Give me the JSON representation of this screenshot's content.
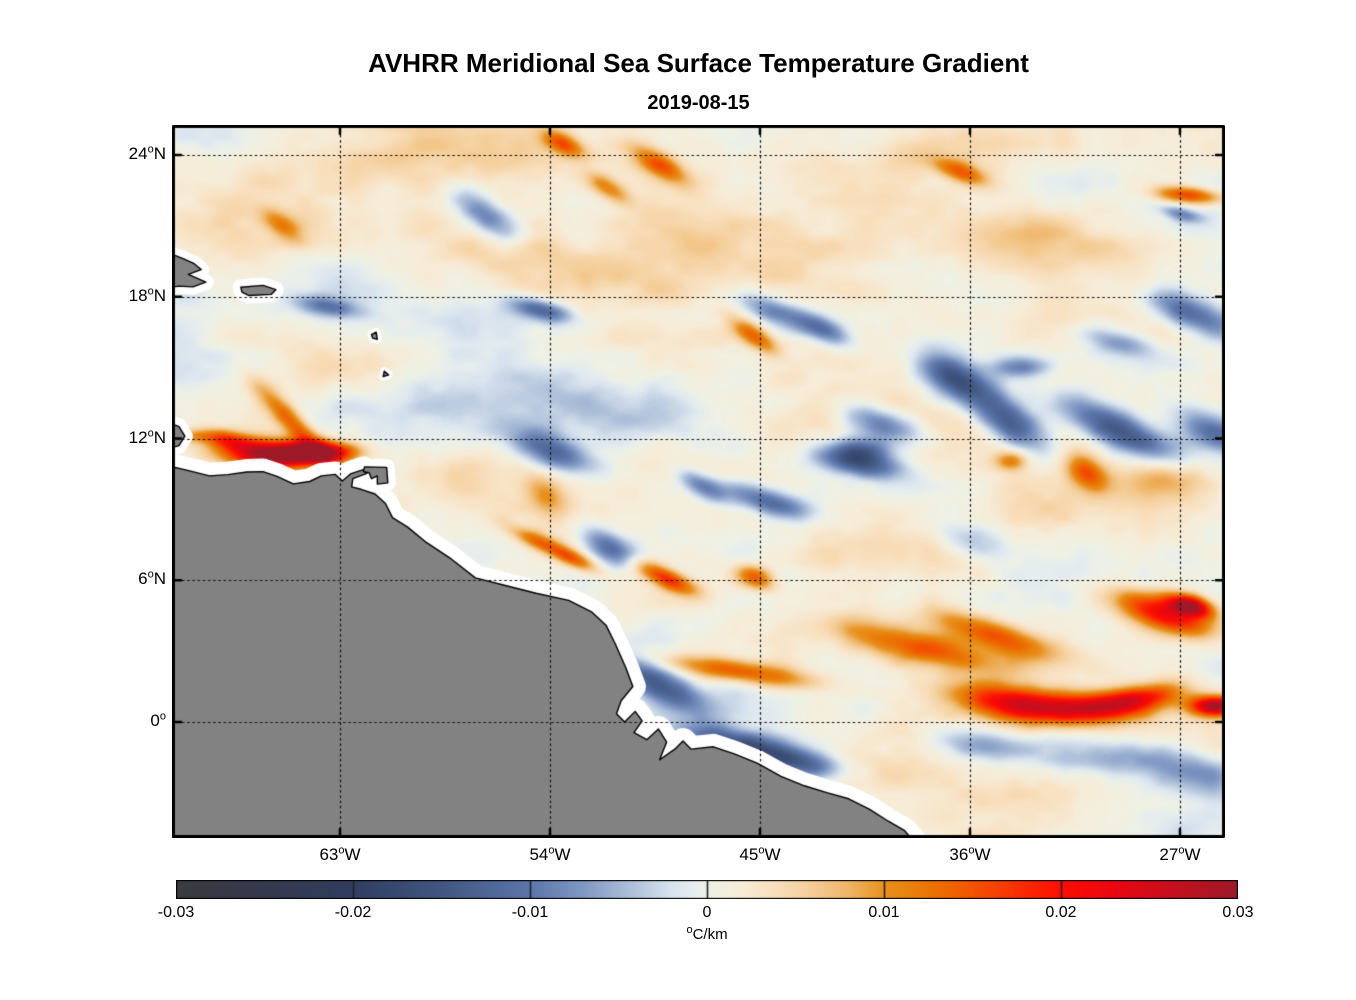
{
  "title": "AVHRR Meridional Sea Surface Temperature Gradient",
  "subtitle": "2019-08-15",
  "chart_data": {
    "type": "heatmap",
    "description": "Map of meridional SST gradient (degC/km) over the tropical western Atlantic and NE South America, diverging blue-white-red colormap, gray land with white coastal data gap, dotted graticule.",
    "units": "°C/km",
    "value_range": [
      -0.03,
      0.03
    ],
    "axes": {
      "lon_ticks": [
        {
          "deg": "63",
          "hem": "W"
        },
        {
          "deg": "54",
          "hem": "W"
        },
        {
          "deg": "45",
          "hem": "W"
        },
        {
          "deg": "36",
          "hem": "W"
        },
        {
          "deg": "27",
          "hem": "W"
        }
      ],
      "lon_tick_values": [
        63,
        54,
        45,
        36,
        27
      ],
      "lat_ticks": [
        {
          "deg": "24",
          "hem": "N"
        },
        {
          "deg": "18",
          "hem": "N"
        },
        {
          "deg": "12",
          "hem": "N"
        },
        {
          "deg": "6",
          "hem": "N"
        },
        {
          "deg": "0",
          "hem": ""
        }
      ],
      "lat_tick_values": [
        24,
        18,
        12,
        6,
        0
      ],
      "lon_range_w": [
        70.2,
        25.07
      ],
      "lat_range": [
        25.27,
        -4.91
      ],
      "grid": "dotted"
    },
    "colorbar": {
      "min": -0.03,
      "max": 0.03,
      "tick_labels": [
        "-0.03",
        "-0.02",
        "-0.01",
        "0",
        "0.01",
        "0.02",
        "0.03"
      ],
      "tick_values": [
        -0.03,
        -0.02,
        -0.01,
        0,
        0.01,
        0.02,
        0.03
      ],
      "interior_tick_values": [
        -0.02,
        -0.01,
        0,
        0.01,
        0.02
      ],
      "unit": {
        "sup": "o",
        "text": "C/km"
      },
      "stops": [
        [
          -0.03,
          "#3b3a40"
        ],
        [
          -0.025,
          "#35394c"
        ],
        [
          -0.02,
          "#303e60"
        ],
        [
          -0.015,
          "#415681"
        ],
        [
          -0.01,
          "#5c76aa"
        ],
        [
          -0.007,
          "#8098c4"
        ],
        [
          -0.004,
          "#b3c5dc"
        ],
        [
          -0.002,
          "#d8e3ee"
        ],
        [
          -0.0008,
          "#e6edee"
        ],
        [
          0.0,
          "#edf1e7"
        ],
        [
          0.0008,
          "#f2f0e0"
        ],
        [
          0.002,
          "#f7ecd8"
        ],
        [
          0.004,
          "#f8deba"
        ],
        [
          0.006,
          "#f4cd96"
        ],
        [
          0.008,
          "#efb468"
        ],
        [
          0.01,
          "#e8921c"
        ],
        [
          0.0125,
          "#ea7504"
        ],
        [
          0.015,
          "#f25500"
        ],
        [
          0.0175,
          "#f93000"
        ],
        [
          0.02,
          "#fd0f00"
        ],
        [
          0.023,
          "#e90711"
        ],
        [
          0.026,
          "#c90f1d"
        ],
        [
          0.03,
          "#9d1a28"
        ]
      ]
    },
    "land": {
      "color": "#828282",
      "outline": "#000000",
      "halo": "#ffffff",
      "polygons": [
        {
          "name": "south-america",
          "halo": 13,
          "pts": [
            [
              70.6,
              10.9
            ],
            [
              69.4,
              10.62
            ],
            [
              68.6,
              10.42
            ],
            [
              67.8,
              10.47
            ],
            [
              67.0,
              10.58
            ],
            [
              66.3,
              10.6
            ],
            [
              65.7,
              10.4
            ],
            [
              65.0,
              10.08
            ],
            [
              64.3,
              10.18
            ],
            [
              63.8,
              10.42
            ],
            [
              63.2,
              10.48
            ],
            [
              62.9,
              10.2
            ],
            [
              62.55,
              10.5
            ],
            [
              62.0,
              10.68
            ],
            [
              61.85,
              10.52
            ],
            [
              62.45,
              10.3
            ],
            [
              62.5,
              9.95
            ],
            [
              62.1,
              9.85
            ],
            [
              61.5,
              9.65
            ],
            [
              61.05,
              9.25
            ],
            [
              60.75,
              8.65
            ],
            [
              60.1,
              8.25
            ],
            [
              59.3,
              7.6
            ],
            [
              58.3,
              6.95
            ],
            [
              57.2,
              6.1
            ],
            [
              56.0,
              5.8
            ],
            [
              54.6,
              5.45
            ],
            [
              53.2,
              5.15
            ],
            [
              52.2,
              4.65
            ],
            [
              51.6,
              4.1
            ],
            [
              51.2,
              3.3
            ],
            [
              50.75,
              2.3
            ],
            [
              50.45,
              1.5
            ],
            [
              50.95,
              0.9
            ],
            [
              51.15,
              0.35
            ],
            [
              50.8,
              0.0
            ],
            [
              50.35,
              0.45
            ],
            [
              50.05,
              0.05
            ],
            [
              50.4,
              -0.45
            ],
            [
              49.85,
              -0.75
            ],
            [
              49.35,
              -0.3
            ],
            [
              49.0,
              -0.85
            ],
            [
              49.3,
              -1.6
            ],
            [
              48.65,
              -1.15
            ],
            [
              48.3,
              -0.8
            ],
            [
              47.95,
              -1.15
            ],
            [
              47.0,
              -1.05
            ],
            [
              46.1,
              -1.35
            ],
            [
              45.1,
              -1.75
            ],
            [
              44.1,
              -2.3
            ],
            [
              43.1,
              -2.7
            ],
            [
              42.1,
              -3.0
            ],
            [
              41.2,
              -3.25
            ],
            [
              40.3,
              -3.7
            ],
            [
              39.5,
              -4.2
            ],
            [
              38.8,
              -4.6
            ],
            [
              38.2,
              -5.3
            ],
            [
              70.6,
              -5.3
            ]
          ]
        },
        {
          "name": "paraguana-peninsula",
          "halo": 8,
          "pts": [
            [
              70.6,
              12.8
            ],
            [
              69.9,
              12.5
            ],
            [
              69.65,
              12.1
            ],
            [
              69.9,
              11.7
            ],
            [
              70.6,
              11.5
            ]
          ]
        },
        {
          "name": "hispaniola-east",
          "halo": 8,
          "pts": [
            [
              70.6,
              19.95
            ],
            [
              69.7,
              19.6
            ],
            [
              69.25,
              19.4
            ],
            [
              68.95,
              19.15
            ],
            [
              69.5,
              18.95
            ],
            [
              68.75,
              18.62
            ],
            [
              69.3,
              18.42
            ],
            [
              69.9,
              18.45
            ],
            [
              70.6,
              18.35
            ]
          ]
        },
        {
          "name": "puerto-rico",
          "halo": 8,
          "pts": [
            [
              67.25,
              18.4
            ],
            [
              66.3,
              18.48
            ],
            [
              65.75,
              18.3
            ],
            [
              65.95,
              18.1
            ],
            [
              66.9,
              18.05
            ],
            [
              67.2,
              18.2
            ]
          ]
        },
        {
          "name": "trinidad",
          "halo": 8,
          "pts": [
            [
              61.95,
              10.8
            ],
            [
              61.0,
              10.78
            ],
            [
              60.95,
              10.12
            ],
            [
              61.4,
              10.07
            ],
            [
              61.4,
              10.42
            ],
            [
              61.65,
              10.3
            ],
            [
              61.75,
              10.55
            ],
            [
              62.0,
              10.6
            ]
          ]
        },
        {
          "name": "guadeloupe",
          "halo": 4,
          "pts": [
            [
              61.65,
              16.4
            ],
            [
              61.45,
              16.5
            ],
            [
              61.4,
              16.2
            ],
            [
              61.6,
              16.25
            ]
          ]
        },
        {
          "name": "martinique",
          "halo": 4,
          "pts": [
            [
              61.1,
              14.85
            ],
            [
              60.92,
              14.7
            ],
            [
              61.15,
              14.62
            ]
          ]
        }
      ]
    },
    "features": [
      [
        66.0,
        11.3,
        1.5,
        0.45,
        -3,
        0.03
      ],
      [
        63.9,
        11.4,
        1.1,
        0.32,
        0,
        0.027
      ],
      [
        65.0,
        12.6,
        1.6,
        0.33,
        -47,
        0.013
      ],
      [
        67.9,
        11.95,
        0.8,
        0.28,
        -10,
        0.013
      ],
      [
        69.3,
        12.1,
        0.6,
        0.2,
        0,
        0.006
      ],
      [
        62.4,
        10.35,
        0.25,
        0.2,
        0,
        -0.018
      ],
      [
        63.4,
        17.55,
        1.1,
        0.3,
        -10,
        -0.01
      ],
      [
        54.4,
        17.45,
        1.0,
        0.3,
        -15,
        -0.011
      ],
      [
        56.8,
        21.5,
        1.2,
        0.45,
        -35,
        -0.01
      ],
      [
        65.5,
        21.0,
        0.8,
        0.35,
        -35,
        0.009
      ],
      [
        53.4,
        24.45,
        0.7,
        0.3,
        -25,
        0.013
      ],
      [
        51.5,
        22.6,
        0.8,
        0.3,
        -30,
        0.009
      ],
      [
        49.3,
        23.6,
        0.9,
        0.35,
        -30,
        0.013
      ],
      [
        36.4,
        23.3,
        0.9,
        0.3,
        -20,
        0.012
      ],
      [
        26.6,
        22.3,
        1.0,
        0.25,
        -5,
        0.016
      ],
      [
        26.9,
        21.5,
        0.7,
        0.22,
        -15,
        -0.009
      ],
      [
        44.3,
        17.3,
        1.2,
        0.4,
        -20,
        -0.011
      ],
      [
        45.2,
        16.3,
        0.9,
        0.3,
        -35,
        0.011
      ],
      [
        42.2,
        16.6,
        0.9,
        0.35,
        -25,
        -0.01
      ],
      [
        26.5,
        17.3,
        1.5,
        0.5,
        -20,
        -0.013
      ],
      [
        29.5,
        16.0,
        1.2,
        0.4,
        -15,
        -0.008
      ],
      [
        36.5,
        14.45,
        1.2,
        0.55,
        -30,
        -0.014
      ],
      [
        34.3,
        12.7,
        1.3,
        0.6,
        -35,
        -0.015
      ],
      [
        29.6,
        12.4,
        1.7,
        0.55,
        -25,
        -0.017
      ],
      [
        25.5,
        12.3,
        1.2,
        0.5,
        -20,
        -0.012
      ],
      [
        39.7,
        12.6,
        1.2,
        0.45,
        -15,
        -0.012
      ],
      [
        40.6,
        11.5,
        0.9,
        0.4,
        0,
        -0.011
      ],
      [
        40.6,
        10.9,
        1.4,
        0.4,
        -10,
        -0.014
      ],
      [
        31.0,
        10.6,
        0.7,
        0.45,
        -30,
        0.014
      ],
      [
        34.2,
        11.05,
        0.5,
        0.3,
        0,
        0.01
      ],
      [
        27.5,
        10.3,
        1.5,
        0.6,
        -5,
        0.008
      ],
      [
        33.8,
        15.0,
        0.8,
        0.3,
        0,
        -0.009
      ],
      [
        53.8,
        11.4,
        1.5,
        0.5,
        -20,
        -0.013
      ],
      [
        51.5,
        7.4,
        0.9,
        0.45,
        -30,
        -0.012
      ],
      [
        54.5,
        7.6,
        1.0,
        0.25,
        -25,
        0.01
      ],
      [
        53.0,
        6.9,
        0.8,
        0.25,
        -25,
        0.011
      ],
      [
        54.2,
        9.6,
        0.7,
        0.5,
        -40,
        0.009
      ],
      [
        47.5,
        10.0,
        0.8,
        0.35,
        -30,
        -0.01
      ],
      [
        44.6,
        9.3,
        1.4,
        0.4,
        -15,
        -0.013
      ],
      [
        36.0,
        7.6,
        1.2,
        0.5,
        -15,
        -0.007
      ],
      [
        49.0,
        6.05,
        1.0,
        0.3,
        -25,
        0.017
      ],
      [
        45.2,
        6.1,
        0.6,
        0.35,
        -20,
        0.013
      ],
      [
        49.3,
        1.5,
        1.5,
        0.5,
        -25,
        -0.015
      ],
      [
        45.8,
        2.1,
        2.3,
        0.35,
        -8,
        0.015
      ],
      [
        38.0,
        3.1,
        2.6,
        0.5,
        -13,
        0.014
      ],
      [
        34.8,
        3.6,
        2.0,
        0.45,
        -18,
        0.015
      ],
      [
        27.6,
        4.5,
        1.6,
        0.5,
        -18,
        0.02
      ],
      [
        26.5,
        4.9,
        0.7,
        0.3,
        -15,
        0.025
      ],
      [
        34.5,
        0.9,
        1.6,
        0.5,
        -8,
        0.017
      ],
      [
        31.5,
        0.55,
        1.9,
        0.5,
        0,
        0.02
      ],
      [
        28.8,
        0.95,
        1.4,
        0.4,
        10,
        0.017
      ],
      [
        25.4,
        0.65,
        0.8,
        0.3,
        0,
        0.028
      ],
      [
        45.6,
        -1.05,
        1.8,
        0.45,
        -12,
        -0.016
      ],
      [
        43.3,
        -1.8,
        1.3,
        0.4,
        -10,
        -0.012
      ],
      [
        35.5,
        -1.0,
        1.4,
        0.5,
        -5,
        -0.009
      ],
      [
        30.8,
        -1.5,
        2.2,
        0.6,
        -5,
        -0.008
      ],
      [
        26.3,
        -2.2,
        1.8,
        0.7,
        -10,
        -0.009
      ],
      [
        58.0,
        23.6,
        4.0,
        1.0,
        -5,
        0.0035
      ],
      [
        40.0,
        24.2,
        4.0,
        1.0,
        -5,
        0.003
      ],
      [
        55.0,
        19.8,
        3.0,
        0.8,
        -10,
        0.004
      ],
      [
        47.0,
        20.5,
        3.0,
        0.9,
        -10,
        0.0045
      ],
      [
        33.0,
        20.0,
        3.5,
        1.0,
        -10,
        0.004
      ],
      [
        63.0,
        15.0,
        2.5,
        0.9,
        -15,
        0.0035
      ],
      [
        58.5,
        10.5,
        2.5,
        0.8,
        -10,
        0.004
      ],
      [
        39.0,
        7.5,
        3.0,
        1.2,
        -10,
        0.004
      ],
      [
        61.0,
        13.5,
        2.5,
        1.0,
        0,
        -0.003
      ],
      [
        53.0,
        13.5,
        3.0,
        1.2,
        -10,
        -0.0028
      ],
      [
        35.0,
        17.0,
        3.0,
        1.2,
        -10,
        -0.002
      ],
      [
        47.0,
        13.0,
        2.5,
        1.0,
        0,
        -0.002
      ]
    ],
    "noise": {
      "seed": 11,
      "octaves": [
        [
          90,
          2.4,
          0.0024
        ],
        [
          46,
          2.2,
          0.0022
        ],
        [
          22,
          1.8,
          0.0013
        ],
        [
          11,
          1.5,
          0.0006
        ]
      ],
      "bias": 0.0013
    }
  }
}
